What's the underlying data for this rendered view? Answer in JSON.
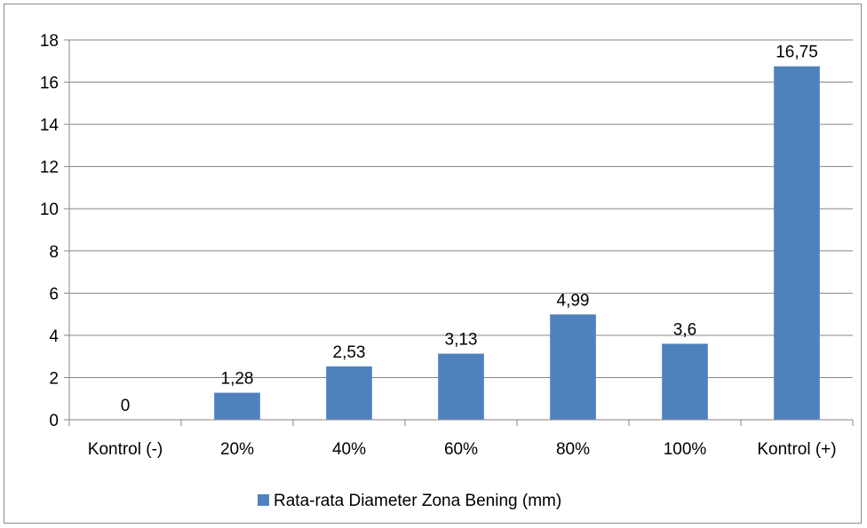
{
  "chart_data": {
    "type": "bar",
    "title": "",
    "xlabel": "",
    "ylabel": "",
    "categories": [
      "Kontrol (-)",
      "20%",
      "40%",
      "60%",
      "80%",
      "100%",
      "Kontrol (+)"
    ],
    "series": [
      {
        "name": "Rata-rata Diameter Zona Bening (mm)",
        "values": [
          0,
          1.28,
          2.53,
          3.13,
          4.99,
          3.6,
          16.75
        ],
        "data_labels": [
          "0",
          "1,28",
          "2,53",
          "3,13",
          "4,99",
          "3,6",
          "16,75"
        ],
        "color": "#4f81bd"
      }
    ],
    "ylim": [
      0,
      18
    ],
    "yticks": [
      0,
      2,
      4,
      6,
      8,
      10,
      12,
      14,
      16,
      18
    ],
    "grid": true,
    "legend_position": "bottom"
  }
}
